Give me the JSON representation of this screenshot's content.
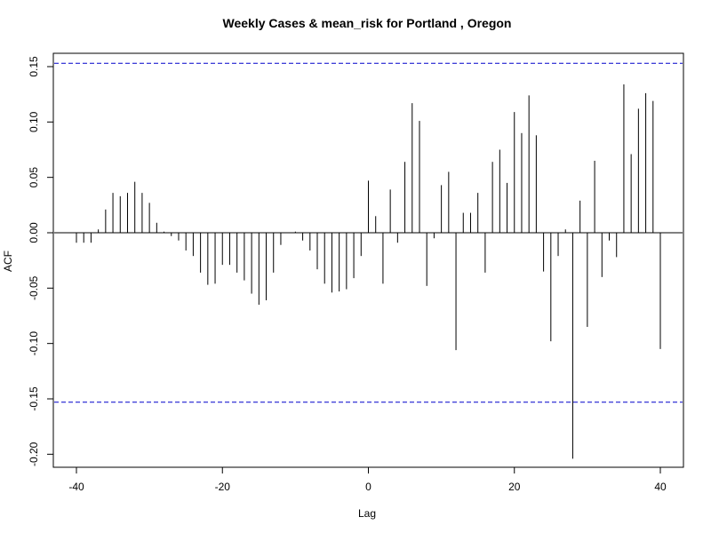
{
  "chart_data": {
    "type": "bar",
    "title": "Weekly Cases & mean_risk for Portland , Oregon",
    "xlabel": "Lag",
    "ylabel": "ACF",
    "xlim": [
      -40,
      40
    ],
    "ylim": [
      -0.215,
      0.165
    ],
    "x_ticks": [
      {
        "value": -40,
        "label": "-40"
      },
      {
        "value": -20,
        "label": "-20"
      },
      {
        "value": 0,
        "label": "0"
      },
      {
        "value": 20,
        "label": "20"
      },
      {
        "value": 40,
        "label": "40"
      }
    ],
    "y_ticks": [
      {
        "value": -0.2,
        "label": "-0.20"
      },
      {
        "value": -0.15,
        "label": "-0.15"
      },
      {
        "value": -0.1,
        "label": "-0.10"
      },
      {
        "value": -0.05,
        "label": "-0.05"
      },
      {
        "value": 0.0,
        "label": "0.00"
      },
      {
        "value": 0.05,
        "label": "0.05"
      },
      {
        "value": 0.1,
        "label": "0.10"
      },
      {
        "value": 0.15,
        "label": "0.15"
      }
    ],
    "confidence_bounds": [
      0.153,
      -0.153
    ],
    "colors": {
      "bars": "#000000",
      "bounds": "#0000cc",
      "zero_line": "#000000",
      "frame": "#000000"
    },
    "lags": [
      -40,
      -39,
      -38,
      -37,
      -36,
      -35,
      -34,
      -33,
      -32,
      -31,
      -30,
      -29,
      -28,
      -27,
      -26,
      -25,
      -24,
      -23,
      -22,
      -21,
      -20,
      -19,
      -18,
      -17,
      -16,
      -15,
      -14,
      -13,
      -12,
      -11,
      -10,
      -9,
      -8,
      -7,
      -6,
      -5,
      -4,
      -3,
      -2,
      -1,
      0,
      1,
      2,
      3,
      4,
      5,
      6,
      7,
      8,
      9,
      10,
      11,
      12,
      13,
      14,
      15,
      16,
      17,
      18,
      19,
      20,
      21,
      22,
      23,
      24,
      25,
      26,
      27,
      28,
      29,
      30,
      31,
      32,
      33,
      34,
      35,
      36,
      37,
      38,
      39,
      40
    ],
    "values": [
      -0.009,
      -0.009,
      -0.009,
      0.003,
      0.021,
      0.036,
      0.033,
      0.036,
      0.046,
      0.036,
      0.027,
      0.009,
      0.001,
      -0.003,
      -0.007,
      -0.016,
      -0.021,
      -0.036,
      -0.047,
      -0.046,
      -0.029,
      -0.029,
      -0.036,
      -0.043,
      -0.055,
      -0.065,
      -0.061,
      -0.036,
      -0.011,
      0.0,
      0.001,
      -0.007,
      -0.016,
      -0.033,
      -0.046,
      -0.054,
      -0.053,
      -0.051,
      -0.041,
      -0.021,
      0.047,
      0.015,
      -0.046,
      0.039,
      -0.009,
      0.064,
      0.117,
      0.101,
      -0.048,
      -0.005,
      0.043,
      0.055,
      -0.106,
      0.018,
      0.018,
      0.036,
      -0.036,
      0.064,
      0.075,
      0.045,
      0.109,
      0.09,
      0.124,
      0.088,
      -0.035,
      -0.098,
      -0.021,
      0.003,
      -0.204,
      0.029,
      -0.085,
      0.065,
      -0.04,
      -0.007,
      -0.022,
      0.134,
      0.071,
      0.112,
      0.126,
      0.119,
      -0.105
    ]
  }
}
